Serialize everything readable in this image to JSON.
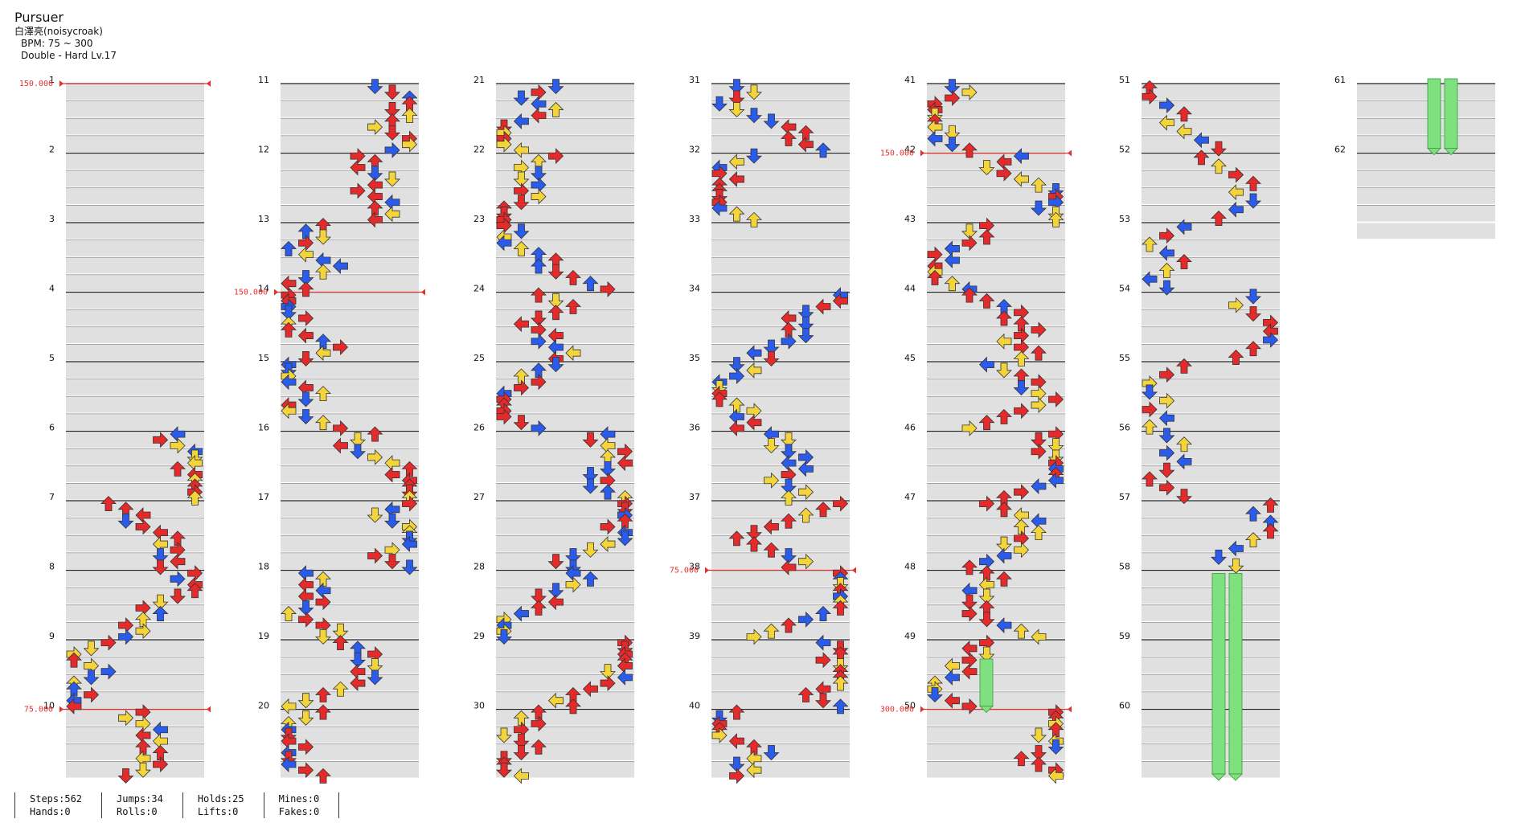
{
  "song": {
    "title": "Pursuer",
    "artist": "白澤亮(noisycroak)",
    "bpm_text": "BPM: 75 ~ 300",
    "difficulty": "Double - Hard Lv.17"
  },
  "measures": [
    "1",
    "2",
    "3",
    "4",
    "5",
    "6",
    "7",
    "8",
    "9",
    "10",
    "11",
    "12",
    "13",
    "14",
    "15",
    "16",
    "17",
    "18",
    "19",
    "20",
    "21",
    "22",
    "23",
    "24",
    "25",
    "26",
    "27",
    "28",
    "29",
    "30",
    "31",
    "32",
    "33",
    "34",
    "35",
    "36",
    "37",
    "38",
    "39",
    "40",
    "41",
    "42",
    "43",
    "44",
    "45",
    "46",
    "47",
    "48",
    "49",
    "50",
    "51",
    "52",
    "53",
    "54",
    "55",
    "56",
    "57",
    "58",
    "59",
    "60",
    "61",
    "62"
  ],
  "bpm_changes": [
    {
      "label": "150.000",
      "measure": 1
    },
    {
      "label": "75.000",
      "measure": 10
    },
    {
      "label": "150.000",
      "measure": 14
    },
    {
      "label": "75.000",
      "measure": 38
    },
    {
      "label": "150.000",
      "measure": 42
    },
    {
      "label": "300.000",
      "measure": 50
    }
  ],
  "stats": {
    "col1": [
      "Steps:562",
      "Hands:0"
    ],
    "col2": [
      "Jumps:34",
      "Rolls:0"
    ],
    "col3": [
      "Holds:25",
      "Lifts:0"
    ],
    "col4": [
      "Mines:0",
      "Fakes:0"
    ]
  },
  "colors": {
    "left": "#2a5bea",
    "down": "#2a5bea",
    "up": "#e42a2a",
    "right": "#e42a2a",
    "fourth": "#f3d53b",
    "eighth": "#e42a2a",
    "sixteenth": "#f3d53b",
    "twelfth": "#a334f2",
    "hold_body": "#7fe07f",
    "bpm_marker": "#e53030"
  }
}
